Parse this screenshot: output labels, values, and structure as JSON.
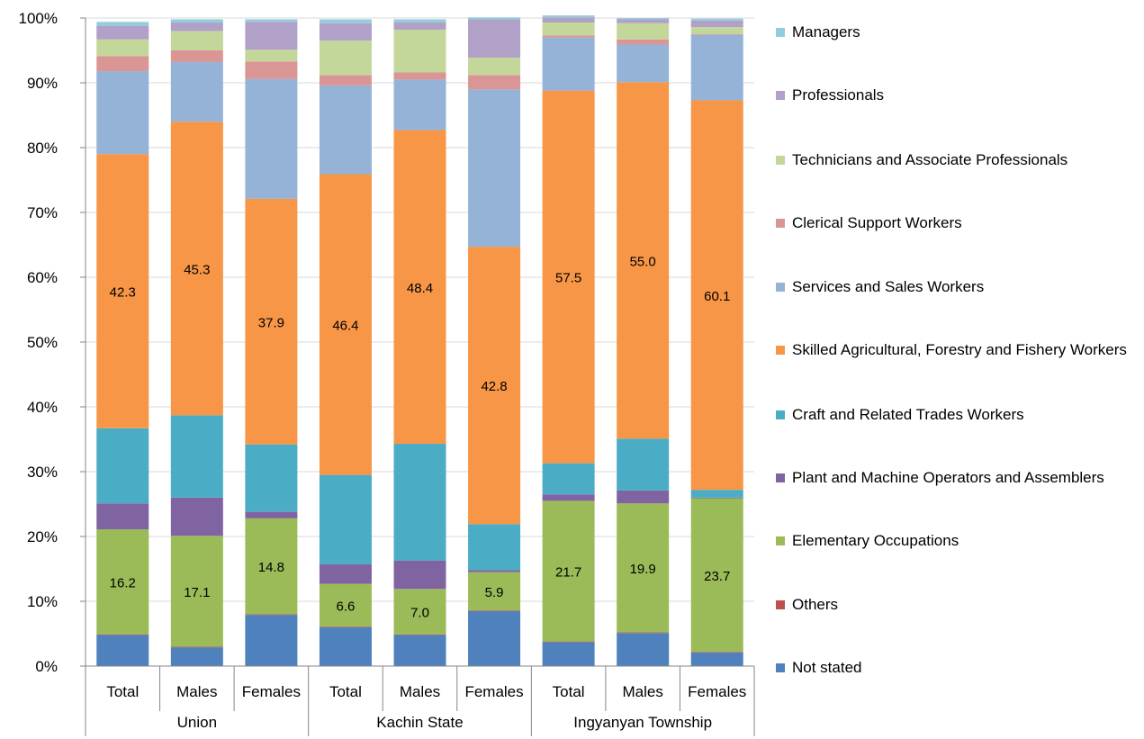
{
  "chart_data": {
    "type": "bar",
    "stacked": true,
    "percent": true,
    "ylim": [
      0,
      100
    ],
    "y_ticks": [
      "0%",
      "10%",
      "20%",
      "30%",
      "40%",
      "50%",
      "60%",
      "70%",
      "80%",
      "90%",
      "100%"
    ],
    "groups": [
      {
        "label": "Union",
        "categories": [
          "Total",
          "Males",
          "Females"
        ]
      },
      {
        "label": "Kachin State",
        "categories": [
          "Total",
          "Males",
          "Females"
        ]
      },
      {
        "label": "Ingyanyan Township",
        "categories": [
          "Total",
          "Males",
          "Females"
        ]
      }
    ],
    "legend_position": "right",
    "series": [
      {
        "name": "Not stated",
        "color": "#4F81BD",
        "values": [
          4.8,
          2.9,
          7.9,
          6.0,
          4.8,
          8.5,
          3.7,
          5.1,
          2.1
        ],
        "labels": [
          "",
          "",
          "",
          "",
          "",
          "",
          "",
          "",
          ""
        ]
      },
      {
        "name": "Others",
        "color": "#C0504D",
        "values": [
          0.1,
          0.1,
          0.1,
          0.1,
          0.1,
          0.1,
          0.1,
          0.1,
          0.1
        ],
        "labels": [
          "",
          "",
          "",
          "",
          "",
          "",
          "",
          "",
          ""
        ]
      },
      {
        "name": "Elementary Occupations",
        "color": "#9BBB59",
        "values": [
          16.2,
          17.1,
          14.8,
          6.6,
          7.0,
          5.9,
          21.7,
          19.9,
          23.7
        ],
        "labels": [
          "16.2",
          "17.1",
          "14.8",
          "6.6",
          "7.0",
          "5.9",
          "21.7",
          "19.9",
          "23.7"
        ]
      },
      {
        "name": "Plant and Machine Operators and Assemblers",
        "color": "#8064A2",
        "values": [
          4.0,
          5.9,
          1.0,
          3.0,
          4.4,
          0.3,
          1.0,
          2.0,
          0.1
        ],
        "labels": [
          "",
          "",
          "",
          "",
          "",
          "",
          "",
          "",
          ""
        ]
      },
      {
        "name": "Craft and Related Trades Workers",
        "color": "#4BACC6",
        "values": [
          11.6,
          12.7,
          10.4,
          13.8,
          18.0,
          7.1,
          4.8,
          8.0,
          1.2
        ],
        "labels": [
          "",
          "",
          "",
          "",
          "",
          "",
          "",
          "",
          ""
        ]
      },
      {
        "name": "Skilled Agricultural, Forestry and Fishery Workers",
        "color": "#F79646",
        "values": [
          42.3,
          45.3,
          37.9,
          46.4,
          48.4,
          42.8,
          57.5,
          55.0,
          60.1
        ],
        "labels": [
          "42.3",
          "45.3",
          "37.9",
          "46.4",
          "48.4",
          "42.8",
          "57.5",
          "55.0",
          "60.1"
        ]
      },
      {
        "name": "Services and Sales Workers",
        "color": "#95B3D7",
        "values": [
          12.8,
          9.2,
          18.5,
          13.7,
          7.8,
          24.3,
          8.2,
          5.8,
          10.1
        ],
        "labels": [
          "",
          "",
          "",
          "",
          "",
          "",
          "",
          "",
          ""
        ]
      },
      {
        "name": "Clerical Support Workers",
        "color": "#DA9694",
        "values": [
          2.3,
          1.8,
          2.7,
          1.6,
          1.1,
          2.2,
          0.3,
          0.8,
          0.1
        ],
        "labels": [
          "",
          "",
          "",
          "",
          "",
          "",
          "",
          "",
          ""
        ]
      },
      {
        "name": "Technicians and Associate Professionals",
        "color": "#C4D79B",
        "values": [
          2.6,
          3.0,
          1.8,
          5.3,
          6.6,
          2.7,
          2.0,
          2.5,
          1.1
        ],
        "labels": [
          "",
          "",
          "",
          "",
          "",
          "",
          "",
          "",
          ""
        ]
      },
      {
        "name": "Professionals",
        "color": "#B1A0C7",
        "values": [
          2.1,
          1.3,
          4.3,
          2.7,
          1.1,
          5.9,
          0.8,
          0.6,
          1.0
        ],
        "labels": [
          "",
          "",
          "",
          "",
          "",
          "",
          "",
          "",
          ""
        ]
      },
      {
        "name": "Managers",
        "color": "#92CDDC",
        "values": [
          0.6,
          0.5,
          0.4,
          0.6,
          0.5,
          0.3,
          0.3,
          0.2,
          0.3
        ],
        "labels": [
          "",
          "",
          "",
          "",
          "",
          "",
          "",
          "",
          ""
        ]
      }
    ]
  },
  "legend": {
    "items": [
      {
        "label": "Managers",
        "color": "#92CDDC"
      },
      {
        "label": "Professionals",
        "color": "#B1A0C7"
      },
      {
        "label": "Technicians and Associate Professionals",
        "color": "#C4D79B"
      },
      {
        "label": "Clerical Support Workers",
        "color": "#DA9694"
      },
      {
        "label": "Services and Sales Workers",
        "color": "#95B3D7"
      },
      {
        "label": "Skilled Agricultural, Forestry and Fishery Workers",
        "color": "#F79646"
      },
      {
        "label": "Craft and Related Trades Workers",
        "color": "#4BACC6"
      },
      {
        "label": "Plant and Machine Operators and Assemblers",
        "color": "#8064A2"
      },
      {
        "label": "Elementary Occupations",
        "color": "#9BBB59"
      },
      {
        "label": "Others",
        "color": "#C0504D"
      },
      {
        "label": "Not stated",
        "color": "#4F81BD"
      }
    ]
  }
}
